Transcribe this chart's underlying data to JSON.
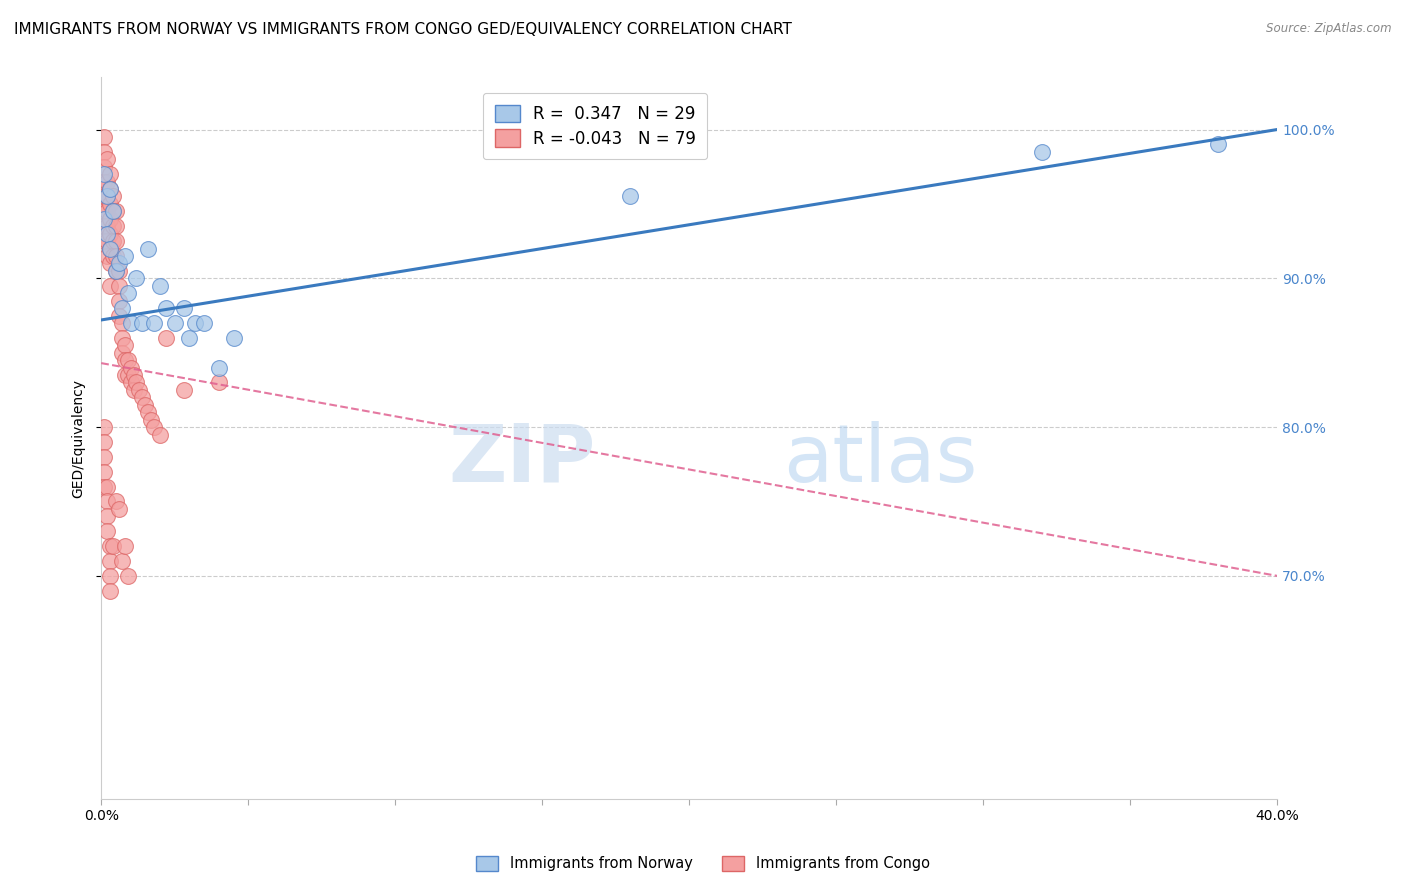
{
  "title": "IMMIGRANTS FROM NORWAY VS IMMIGRANTS FROM CONGO GED/EQUIVALENCY CORRELATION CHART",
  "source": "Source: ZipAtlas.com",
  "ylabel": "GED/Equivalency",
  "xmin": 0.0,
  "xmax": 0.4,
  "ymin": 0.55,
  "ymax": 1.035,
  "yticks": [
    1.0,
    0.9,
    0.8,
    0.7
  ],
  "xticks": [
    0.0,
    0.05,
    0.1,
    0.15,
    0.2,
    0.25,
    0.3,
    0.35,
    0.4
  ],
  "norway_color": "#a8c8e8",
  "congo_color": "#f4a0a0",
  "norway_edge": "#5588cc",
  "congo_edge": "#dd6666",
  "norway_R": 0.347,
  "norway_N": 29,
  "congo_R": -0.043,
  "congo_N": 79,
  "legend_label_norway": "Immigrants from Norway",
  "legend_label_congo": "Immigrants from Congo",
  "norway_line_color": "#3a7abf",
  "congo_line_color": "#e06090",
  "grid_color": "#cccccc",
  "background_color": "#ffffff",
  "title_fontsize": 11,
  "axis_label_fontsize": 10,
  "tick_fontsize": 10,
  "right_tick_color": "#4a86cc",
  "legend_fontsize": 12,
  "norway_x": [
    0.001,
    0.001,
    0.002,
    0.002,
    0.003,
    0.003,
    0.004,
    0.005,
    0.006,
    0.007,
    0.008,
    0.009,
    0.01,
    0.012,
    0.014,
    0.016,
    0.018,
    0.02,
    0.022,
    0.025,
    0.028,
    0.03,
    0.032,
    0.035,
    0.04,
    0.045,
    0.18,
    0.32,
    0.38
  ],
  "norway_y": [
    0.97,
    0.94,
    0.955,
    0.93,
    0.96,
    0.92,
    0.945,
    0.905,
    0.91,
    0.88,
    0.915,
    0.89,
    0.87,
    0.9,
    0.87,
    0.92,
    0.87,
    0.895,
    0.88,
    0.87,
    0.88,
    0.86,
    0.87,
    0.87,
    0.84,
    0.86,
    0.955,
    0.985,
    0.99
  ],
  "congo_x": [
    0.001,
    0.001,
    0.001,
    0.001,
    0.001,
    0.001,
    0.001,
    0.001,
    0.002,
    0.002,
    0.002,
    0.002,
    0.002,
    0.002,
    0.002,
    0.003,
    0.003,
    0.003,
    0.003,
    0.003,
    0.003,
    0.003,
    0.003,
    0.004,
    0.004,
    0.004,
    0.004,
    0.004,
    0.005,
    0.005,
    0.005,
    0.005,
    0.005,
    0.006,
    0.006,
    0.006,
    0.006,
    0.007,
    0.007,
    0.007,
    0.008,
    0.008,
    0.008,
    0.009,
    0.009,
    0.01,
    0.01,
    0.011,
    0.011,
    0.012,
    0.013,
    0.014,
    0.015,
    0.016,
    0.017,
    0.018,
    0.02,
    0.001,
    0.001,
    0.001,
    0.001,
    0.001,
    0.002,
    0.002,
    0.002,
    0.002,
    0.003,
    0.003,
    0.003,
    0.003,
    0.004,
    0.005,
    0.006,
    0.007,
    0.008,
    0.009,
    0.022,
    0.028,
    0.04
  ],
  "congo_y": [
    0.995,
    0.985,
    0.975,
    0.965,
    0.955,
    0.945,
    0.935,
    0.925,
    0.98,
    0.965,
    0.955,
    0.945,
    0.935,
    0.925,
    0.915,
    0.97,
    0.96,
    0.95,
    0.94,
    0.93,
    0.92,
    0.91,
    0.895,
    0.955,
    0.945,
    0.935,
    0.925,
    0.915,
    0.945,
    0.935,
    0.925,
    0.915,
    0.905,
    0.905,
    0.895,
    0.885,
    0.875,
    0.87,
    0.86,
    0.85,
    0.855,
    0.845,
    0.835,
    0.845,
    0.835,
    0.84,
    0.83,
    0.835,
    0.825,
    0.83,
    0.825,
    0.82,
    0.815,
    0.81,
    0.805,
    0.8,
    0.795,
    0.8,
    0.79,
    0.78,
    0.77,
    0.76,
    0.76,
    0.75,
    0.74,
    0.73,
    0.72,
    0.71,
    0.7,
    0.69,
    0.72,
    0.75,
    0.745,
    0.71,
    0.72,
    0.7,
    0.86,
    0.825,
    0.83
  ]
}
